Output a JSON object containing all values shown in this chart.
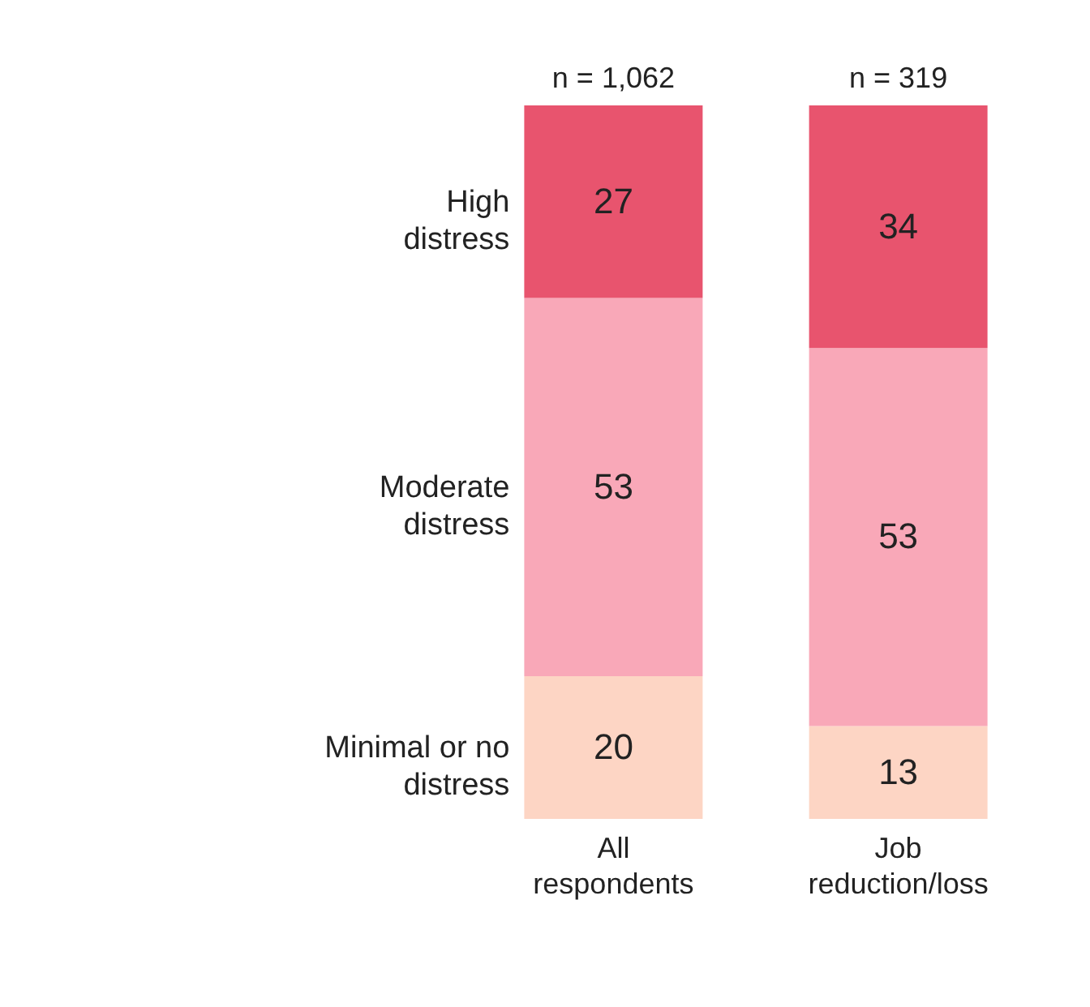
{
  "chart_data": {
    "type": "bar",
    "stacked": true,
    "categories": [
      "All respondents",
      "Job reduction/loss"
    ],
    "series": [
      {
        "name": "Minimal or no distress",
        "color": "#fdd5c4",
        "values": [
          20,
          13
        ]
      },
      {
        "name": "Moderate distress",
        "color": "#f9a8b8",
        "values": [
          53,
          53
        ]
      },
      {
        "name": "High distress",
        "color": "#e8546e",
        "values": [
          27,
          34
        ]
      }
    ],
    "annotations": [
      "n = 1,062",
      "n = 319"
    ],
    "data_labels": true
  }
}
